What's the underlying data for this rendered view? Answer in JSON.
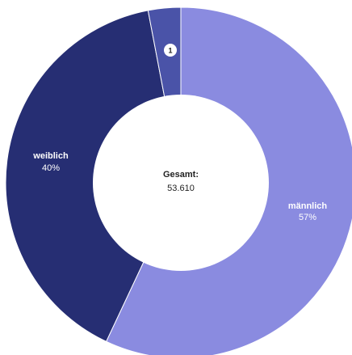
{
  "chart_data": {
    "type": "pie",
    "variant": "donut",
    "slices": [
      {
        "name": "männlich",
        "value_pct": 57,
        "label_pct": "57%",
        "color": "#8a8be0"
      },
      {
        "name": "weiblich",
        "value_pct": 40,
        "label_pct": "40%",
        "color": "#262e73"
      },
      {
        "name": "",
        "value_pct": 3,
        "label_pct": "",
        "badge": "1",
        "color": "#4a53a8"
      }
    ],
    "center": {
      "title": "Gesamt:",
      "value": "53.610"
    }
  }
}
